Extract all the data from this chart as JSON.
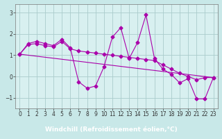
{
  "xlabel": "Windchill (Refroidissement éolien,°C)",
  "background_color": "#c8e8e8",
  "plot_bg_color": "#d8f0f0",
  "xlabel_bg_color": "#9900aa",
  "xlabel_text_color": "#ffffff",
  "grid_color": "#aacccc",
  "line_color": "#aa00aa",
  "xlim": [
    -0.5,
    23.5
  ],
  "ylim": [
    -1.5,
    3.4
  ],
  "yticks": [
    -1,
    0,
    1,
    2,
    3
  ],
  "xticks": [
    0,
    1,
    2,
    3,
    4,
    5,
    6,
    7,
    8,
    9,
    10,
    11,
    12,
    13,
    14,
    15,
    16,
    17,
    18,
    19,
    20,
    21,
    22,
    23
  ],
  "series1_x": [
    0,
    1,
    2,
    3,
    4,
    5,
    6,
    7,
    8,
    9,
    10,
    11,
    12,
    13,
    14,
    15,
    16,
    17,
    18,
    19,
    20,
    21,
    22,
    23
  ],
  "series1_y": [
    1.05,
    1.55,
    1.65,
    1.55,
    1.45,
    1.75,
    1.35,
    -0.25,
    -0.55,
    -0.45,
    0.45,
    1.85,
    2.3,
    0.85,
    1.6,
    2.9,
    0.85,
    0.35,
    0.1,
    -0.3,
    -0.1,
    -1.05,
    -1.05,
    -0.05
  ],
  "series2_x": [
    0,
    1,
    2,
    3,
    4,
    5,
    6,
    7,
    8,
    9,
    10,
    11,
    12,
    13,
    14,
    15,
    16,
    17,
    18,
    19,
    20,
    21,
    22,
    23
  ],
  "series2_y": [
    1.05,
    1.5,
    1.55,
    1.45,
    1.4,
    1.65,
    1.3,
    1.2,
    1.15,
    1.1,
    1.05,
    1.0,
    0.95,
    0.9,
    0.85,
    0.8,
    0.75,
    0.55,
    0.35,
    0.15,
    0.0,
    -0.15,
    -0.05,
    -0.05
  ],
  "series3_x": [
    0,
    23
  ],
  "series3_y": [
    1.05,
    -0.05
  ],
  "marker": "D",
  "markersize": 2.5,
  "linewidth": 0.8,
  "xlabel_fontsize": 6.5,
  "tick_fontsize": 5.5
}
